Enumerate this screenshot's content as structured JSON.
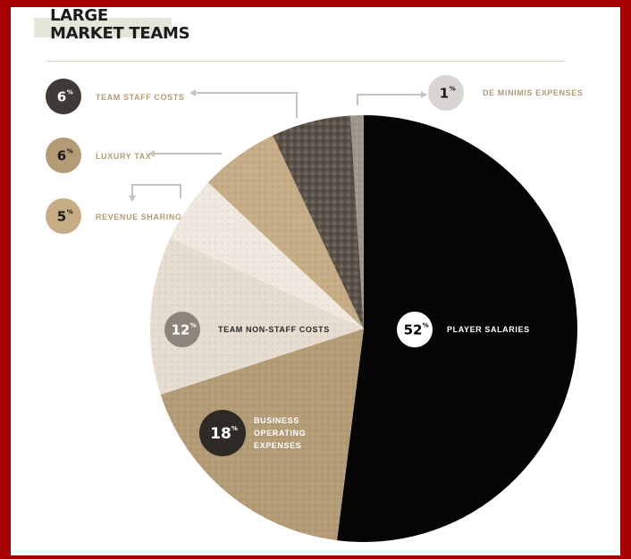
{
  "header": {
    "title_line_1": "LARGE",
    "title_line_2": "MARKET TEAMS"
  },
  "colors": {
    "background_border": "#a50000",
    "black": "#050505",
    "dark_gray": "#5b534a",
    "light_gray": "#9c9690",
    "tan": "#b39b76",
    "mid_tan": "#c6ad86",
    "light_tan": "#e6dccf",
    "cream": "#f0e9e0",
    "arrow": "#c7c2bb"
  },
  "chart_data": {
    "type": "pie",
    "title": "LARGE MARKET TEAMS",
    "unit": "%",
    "slices": [
      {
        "label": "PLAYER SALARIES",
        "value": 52
      },
      {
        "label": "BUSINESS OPERATING EXPENSES",
        "label_lines": [
          "BUSINESS",
          "OPERATING",
          "EXPENSES"
        ],
        "value": 18
      },
      {
        "label": "TEAM NON-STAFF COSTS",
        "value": 12
      },
      {
        "label": "REVENUE SHARING",
        "value": 5
      },
      {
        "label": "LUXURY TAX",
        "value": 6
      },
      {
        "label": "TEAM STAFF COSTS",
        "value": 6
      },
      {
        "label": "DE MINIMIS EXPENSES",
        "value": 1
      }
    ]
  }
}
